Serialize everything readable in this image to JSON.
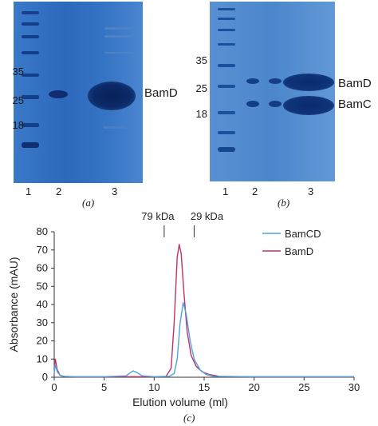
{
  "panel_a": {
    "caption": "(a)",
    "mw_markers": [
      "35",
      "25",
      "18"
    ],
    "lanes": [
      "1",
      "2",
      "3"
    ],
    "band_label": "BamD"
  },
  "panel_b": {
    "caption": "(b)",
    "mw_markers": [
      "35",
      "25",
      "18"
    ],
    "lanes": [
      "1",
      "2",
      "3"
    ],
    "band_labels": [
      "BamD",
      "BamC"
    ]
  },
  "panel_c": {
    "caption": "(c)",
    "markers": [
      "79 kDa",
      "29 kDa"
    ]
  },
  "colors": {
    "BamCD": "#4fa3d9",
    "BamD": "#c0306a"
  },
  "chart_data": {
    "type": "line",
    "xlabel": "Elution volume (ml)",
    "ylabel": "Absorbance (mAU)",
    "xlim": [
      0,
      30
    ],
    "ylim": [
      0,
      80
    ],
    "xticks": [
      "0",
      "5",
      "10",
      "15",
      "20",
      "25",
      "30"
    ],
    "yticks": [
      "0",
      "10",
      "20",
      "30",
      "40",
      "50",
      "60",
      "70",
      "80"
    ],
    "legend_position": "top-right",
    "series": [
      {
        "name": "BamCD",
        "x": [
          0,
          0.1,
          0.3,
          0.6,
          1,
          2,
          5,
          7.2,
          7.6,
          7.9,
          8.3,
          8.8,
          10,
          11.5,
          12.0,
          12.3,
          12.6,
          12.9,
          13.2,
          13.6,
          14.0,
          14.6,
          15.2,
          16,
          20,
          25,
          30
        ],
        "y": [
          2,
          7,
          3,
          1,
          0.5,
          0.3,
          0.3,
          0.8,
          2.5,
          3.5,
          2.5,
          0.8,
          0.3,
          0.5,
          2,
          10,
          30,
          41,
          35,
          20,
          10,
          4,
          1.5,
          0.5,
          0.3,
          0.3,
          0.3
        ]
      },
      {
        "name": "BamD",
        "x": [
          0,
          0.1,
          0.3,
          0.6,
          1,
          2,
          5,
          8,
          10,
          11.2,
          11.7,
          12.0,
          12.3,
          12.5,
          12.7,
          13.0,
          13.3,
          13.7,
          14.2,
          14.8,
          15.5,
          16.5,
          20,
          25,
          30
        ],
        "y": [
          5,
          10,
          4,
          1,
          0.5,
          0.2,
          0.2,
          0.3,
          0.2,
          0.5,
          5,
          30,
          66,
          73,
          68,
          45,
          25,
          12,
          6,
          3,
          1.5,
          0.5,
          0.2,
          0.2,
          0.2
        ]
      }
    ],
    "annotations": [
      {
        "text": "79 kDa",
        "x": 11
      },
      {
        "text": "29 kDa",
        "x": 14
      }
    ]
  }
}
